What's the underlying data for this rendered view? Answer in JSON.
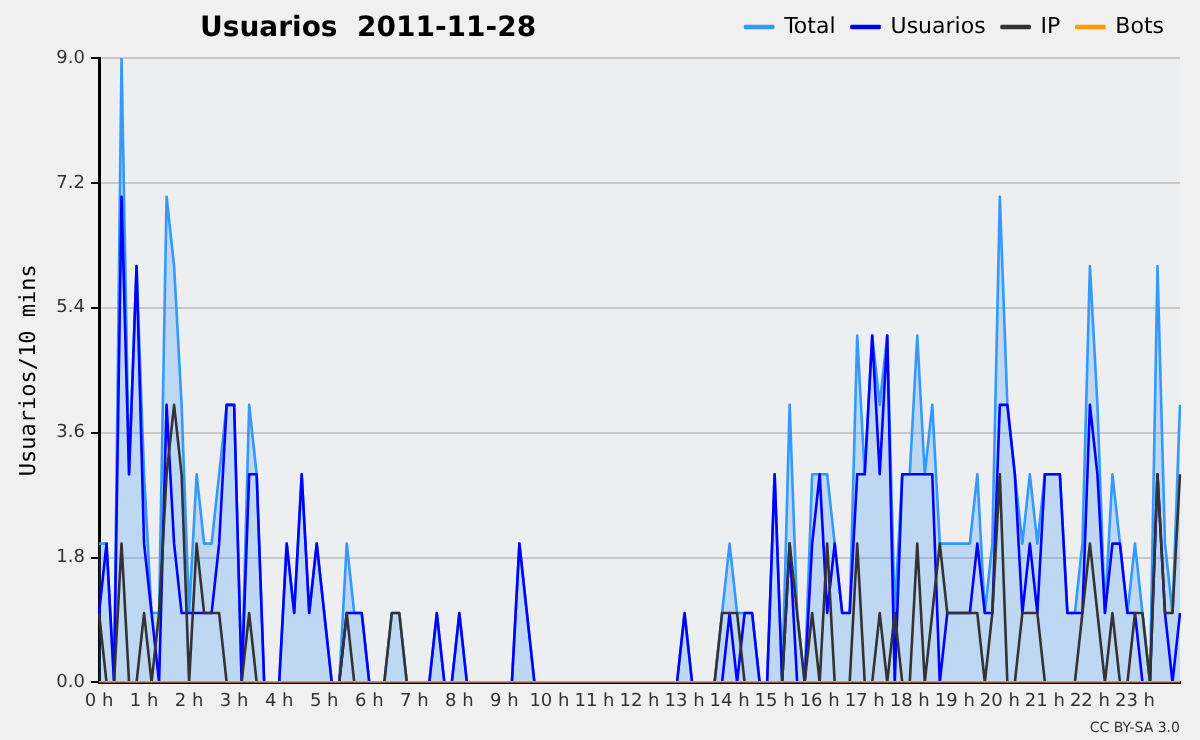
{
  "chart_data": {
    "type": "line",
    "title": "Usuarios  2011-11-28",
    "ylabel": "Usuarios/10 mins",
    "categories": [
      "0 h",
      null,
      null,
      null,
      null,
      null,
      "1 h",
      null,
      null,
      null,
      null,
      null,
      "2 h",
      null,
      null,
      null,
      null,
      null,
      "3 h",
      null,
      null,
      null,
      null,
      null,
      "4 h",
      null,
      null,
      null,
      null,
      null,
      "5 h",
      null,
      null,
      null,
      null,
      null,
      "6 h",
      null,
      null,
      null,
      null,
      null,
      "7 h",
      null,
      null,
      null,
      null,
      null,
      "8 h",
      null,
      null,
      null,
      null,
      null,
      "9 h",
      null,
      null,
      null,
      null,
      null,
      "10 h",
      null,
      null,
      null,
      null,
      null,
      "11 h",
      null,
      null,
      null,
      null,
      null,
      "12 h",
      null,
      null,
      null,
      null,
      null,
      "13 h",
      null,
      null,
      null,
      null,
      null,
      "14 h",
      null,
      null,
      null,
      null,
      null,
      "15 h",
      null,
      null,
      null,
      null,
      null,
      "16 h",
      null,
      null,
      null,
      null,
      null,
      "17 h",
      null,
      null,
      null,
      null,
      null,
      "18 h",
      null,
      null,
      null,
      null,
      null,
      "19 h",
      null,
      null,
      null,
      null,
      null,
      "20 h",
      null,
      null,
      null,
      null,
      null,
      "21 h",
      null,
      null,
      null,
      null,
      null,
      "22 h",
      null,
      null,
      null,
      null,
      null,
      "23 h",
      null,
      null,
      null,
      null,
      null,
      null
    ],
    "series": [
      {
        "name": "Total",
        "type": "area",
        "color": "#3399ff",
        "values": [
          2,
          2,
          0,
          9,
          3,
          6,
          3,
          1,
          1,
          7,
          6,
          4,
          1,
          3,
          2,
          2,
          3,
          4,
          4,
          0,
          4,
          3,
          0,
          0,
          0,
          2,
          1,
          3,
          1,
          2,
          1,
          0,
          0,
          2,
          1,
          1,
          0,
          0,
          0,
          1,
          1,
          0,
          0,
          0,
          0,
          1,
          0,
          0,
          1,
          0,
          0,
          0,
          0,
          0,
          0,
          0,
          2,
          1,
          0,
          0,
          0,
          0,
          0,
          0,
          0,
          0,
          0,
          0,
          0,
          0,
          0,
          0,
          0,
          0,
          0,
          0,
          0,
          0,
          1,
          0,
          0,
          0,
          0,
          1,
          2,
          1,
          1,
          1,
          0,
          0,
          3,
          0,
          4,
          1,
          0,
          3,
          3,
          3,
          2,
          1,
          1,
          5,
          3,
          5,
          4,
          5,
          1,
          3,
          3,
          5,
          3,
          4,
          2,
          2,
          2,
          2,
          2,
          3,
          1,
          2,
          7,
          4,
          3,
          2,
          3,
          2,
          3,
          3,
          3,
          1,
          1,
          2,
          6,
          4,
          1,
          3,
          2,
          1,
          2,
          1,
          0,
          6,
          2,
          1,
          4
        ]
      },
      {
        "name": "Usuarios",
        "type": "line",
        "color": "#0000ff",
        "values": [
          1,
          2,
          0,
          7,
          3,
          6,
          2,
          1,
          0,
          4,
          2,
          1,
          1,
          1,
          1,
          1,
          2,
          4,
          4,
          0,
          3,
          3,
          0,
          0,
          0,
          2,
          1,
          3,
          1,
          2,
          1,
          0,
          0,
          1,
          1,
          1,
          0,
          0,
          0,
          0,
          0,
          0,
          0,
          0,
          0,
          1,
          0,
          0,
          1,
          0,
          0,
          0,
          0,
          0,
          0,
          0,
          2,
          1,
          0,
          0,
          0,
          0,
          0,
          0,
          0,
          0,
          0,
          0,
          0,
          0,
          0,
          0,
          0,
          0,
          0,
          0,
          0,
          0,
          1,
          0,
          0,
          0,
          0,
          0,
          1,
          0,
          1,
          1,
          0,
          0,
          3,
          0,
          2,
          0,
          0,
          2,
          3,
          1,
          2,
          1,
          1,
          3,
          3,
          5,
          3,
          5,
          0,
          3,
          3,
          3,
          3,
          3,
          0,
          1,
          1,
          1,
          1,
          2,
          1,
          1,
          4,
          4,
          3,
          1,
          2,
          1,
          3,
          3,
          3,
          1,
          1,
          1,
          4,
          3,
          1,
          2,
          2,
          1,
          1,
          0,
          0,
          3,
          1,
          0,
          1
        ]
      },
      {
        "name": "IP",
        "type": "line",
        "color": "#333333",
        "values": [
          1,
          0,
          0,
          2,
          0,
          0,
          1,
          0,
          1,
          3,
          4,
          3,
          0,
          2,
          1,
          1,
          1,
          0,
          0,
          0,
          1,
          0,
          0,
          0,
          0,
          0,
          0,
          0,
          0,
          0,
          0,
          0,
          0,
          1,
          0,
          0,
          0,
          0,
          0,
          1,
          1,
          0,
          0,
          0,
          0,
          0,
          0,
          0,
          0,
          0,
          0,
          0,
          0,
          0,
          0,
          0,
          0,
          0,
          0,
          0,
          0,
          0,
          0,
          0,
          0,
          0,
          0,
          0,
          0,
          0,
          0,
          0,
          0,
          0,
          0,
          0,
          0,
          0,
          0,
          0,
          0,
          0,
          0,
          1,
          1,
          1,
          0,
          0,
          0,
          0,
          0,
          0,
          2,
          1,
          0,
          1,
          0,
          2,
          0,
          0,
          0,
          2,
          0,
          0,
          1,
          0,
          1,
          0,
          0,
          2,
          0,
          1,
          2,
          1,
          1,
          1,
          1,
          1,
          0,
          1,
          3,
          0,
          0,
          1,
          1,
          1,
          0,
          0,
          0,
          0,
          0,
          1,
          2,
          1,
          0,
          1,
          0,
          0,
          1,
          1,
          0,
          3,
          1,
          1,
          3
        ]
      },
      {
        "name": "Bots",
        "type": "line",
        "color": "#ff9900",
        "values": [
          0,
          0,
          0,
          0,
          0,
          0,
          0,
          0,
          0,
          0,
          0,
          0,
          0,
          0,
          0,
          0,
          0,
          0,
          0,
          0,
          0,
          0,
          0,
          0,
          0,
          0,
          0,
          0,
          0,
          0,
          0,
          0,
          0,
          0,
          0,
          0,
          0,
          0,
          0,
          0,
          0,
          0,
          0,
          0,
          0,
          0,
          0,
          0,
          0,
          0,
          0,
          0,
          0,
          0,
          0,
          0,
          0,
          0,
          0,
          0,
          0,
          0,
          0,
          0,
          0,
          0,
          0,
          0,
          0,
          0,
          0,
          0,
          0,
          0,
          0,
          0,
          0,
          0,
          0,
          0,
          0,
          0,
          0,
          0,
          0,
          0,
          0,
          0,
          0,
          0,
          0,
          0,
          0,
          0,
          0,
          0,
          0,
          0,
          0,
          0,
          0,
          0,
          0,
          0,
          0,
          0,
          0,
          0,
          0,
          0,
          0,
          0,
          0,
          0,
          0,
          0,
          0,
          0,
          0,
          0,
          0,
          0,
          0,
          0,
          0,
          0,
          0,
          0,
          0,
          0,
          0,
          0,
          0,
          0,
          0,
          0,
          0,
          0,
          0,
          0,
          0,
          0,
          0,
          0,
          0
        ]
      }
    ],
    "ylim": [
      0,
      9
    ],
    "yticks": [
      {
        "value": 0,
        "label": "0.0"
      },
      {
        "value": 1.8,
        "label": "1.8"
      },
      {
        "value": 3.6,
        "label": "3.6"
      },
      {
        "value": 5.4,
        "label": "5.4"
      },
      {
        "value": 7.2,
        "label": "7.2"
      },
      {
        "value": 9,
        "label": "9.0"
      }
    ],
    "grid": "y",
    "legend": "top right",
    "marker": "none",
    "line_style": "solid",
    "annotations": [
      "CC BY-SA 3.0"
    ]
  }
}
